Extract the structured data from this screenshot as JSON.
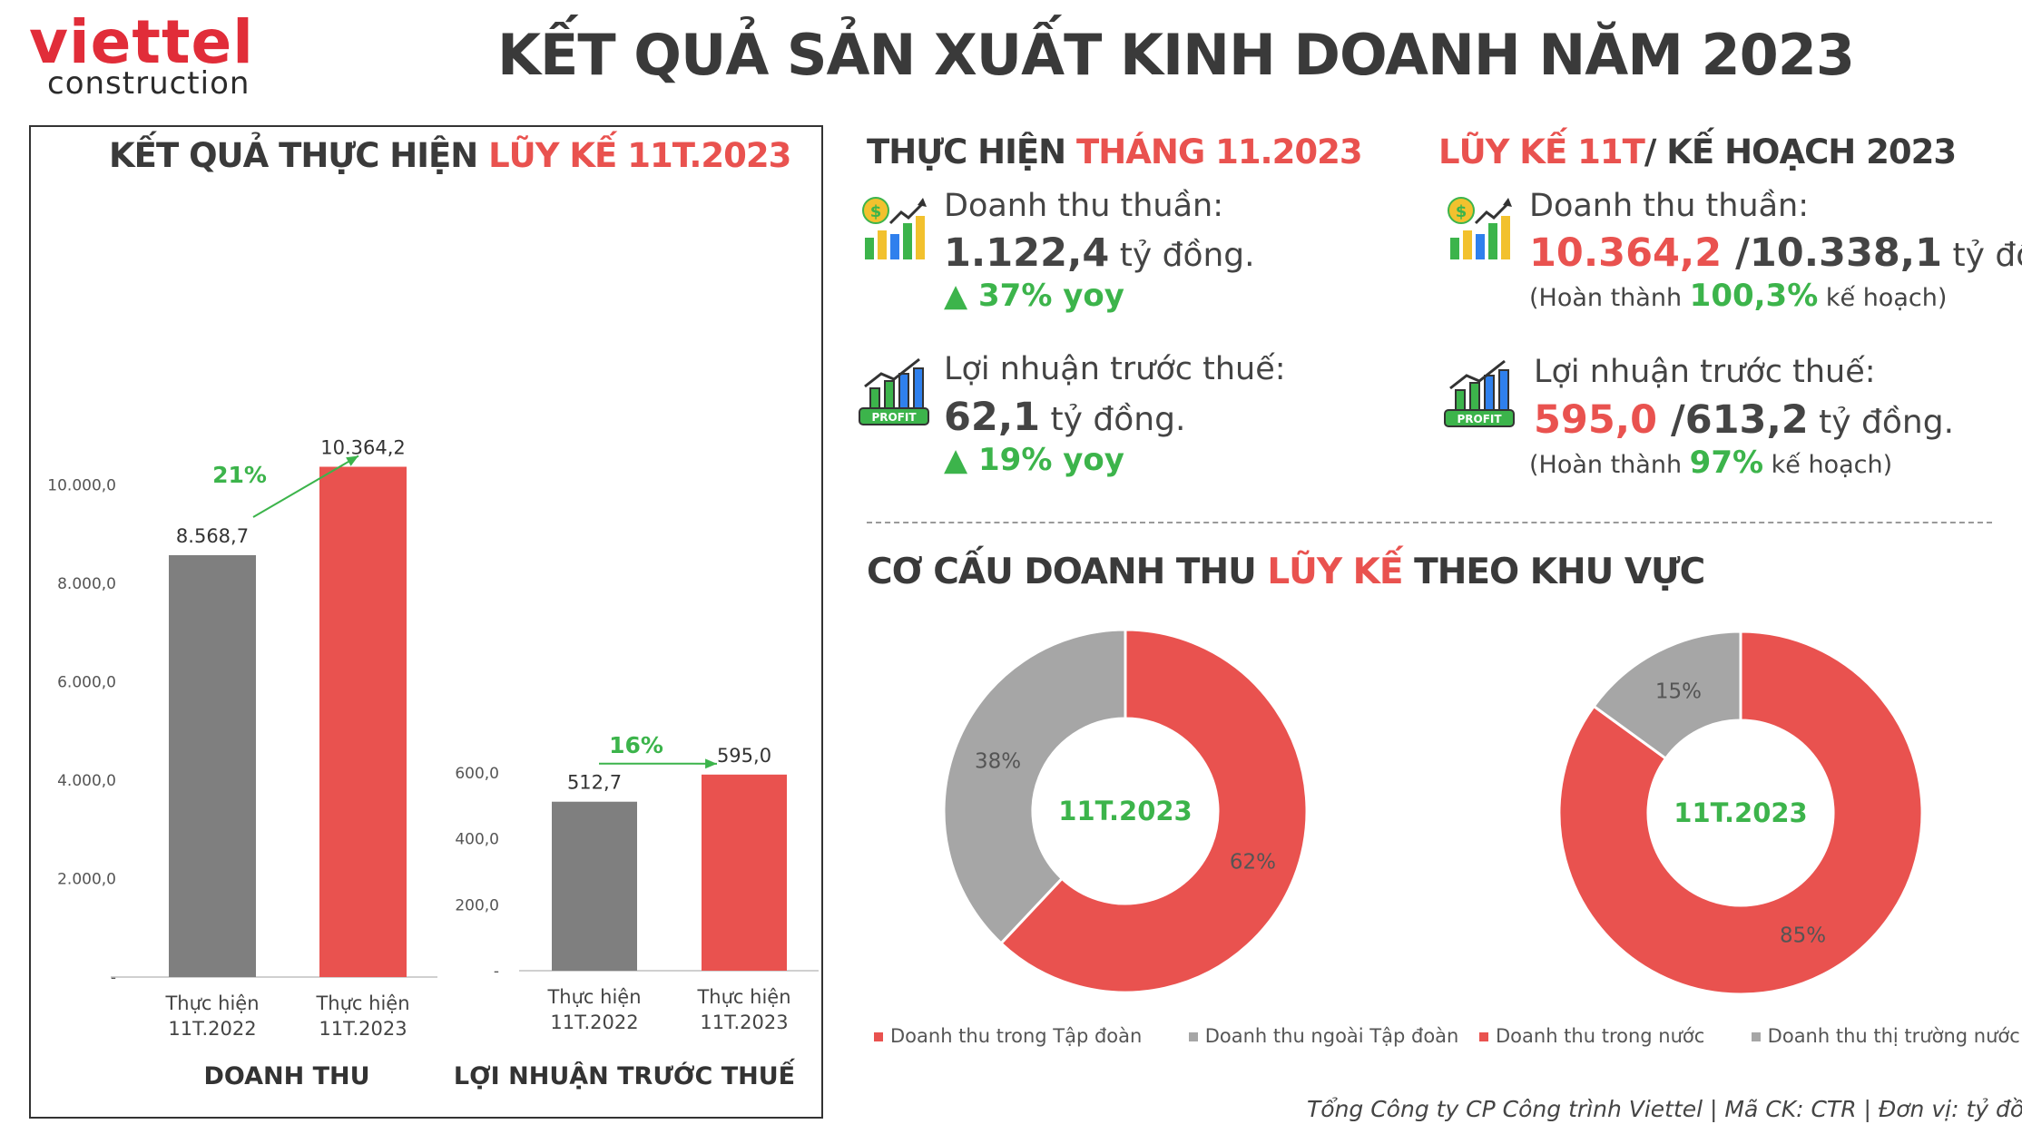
{
  "logo": {
    "brand": "viettel",
    "sub": "construction"
  },
  "header": {
    "title": "KẾT QUẢ SẢN XUẤT KINH DOANH NĂM 2023"
  },
  "left_panel": {
    "title_part1": "KẾT QUẢ THỰC HIỆN ",
    "title_part2": "LŨY KẾ 11T.2023"
  },
  "monthly": {
    "title_part1": "THỰC HIỆN ",
    "title_part2": "THÁNG 11.2023",
    "revenue_label": "Doanh thu thuần:",
    "revenue_value": "1.122,4",
    "revenue_unit": " tỷ đồng.",
    "revenue_yoy": "37% yoy",
    "profit_label": "Lợi nhuận trước thuế:",
    "profit_value": "62,1",
    "profit_unit": " tỷ đồng.",
    "profit_yoy": "19% yoy",
    "profit_icon_text": "PROFIT"
  },
  "plan": {
    "title_part1": "LŨY KẾ 11T",
    "title_part2": "/ KẾ HOẠCH 2023",
    "revenue_label": "Doanh thu thuần:",
    "revenue_actual": "10.364,2",
    "revenue_plan": " /10.338,1",
    "revenue_unit": " tỷ đồng.",
    "revenue_note_pre": "(Hoàn thành ",
    "revenue_note_pct": "100,3%",
    "revenue_note_post": " kế hoạch)",
    "profit_label": "Lợi nhuận trước thuế:",
    "profit_actual": "595,0",
    "profit_plan": " /613,2",
    "profit_unit": " tỷ đồng.",
    "profit_note_pre": "(Hoàn thành ",
    "profit_note_pct": "97%",
    "profit_note_post": " kế hoạch)",
    "profit_icon_text": "PROFIT"
  },
  "structure": {
    "title_part1": "CƠ CẤU DOANH THU ",
    "title_part2": "LŨY KẾ",
    "title_part3": " THEO KHU VỰC"
  },
  "colors": {
    "red": "#e9524f",
    "gray": "#7f7f7f",
    "lightgray": "#a6a6a6",
    "green": "#3cb44b"
  },
  "chart_data": [
    {
      "type": "bar",
      "xlabel": "DOANH THU",
      "categories": [
        "Thực hiện\n11T.2022",
        "Thực hiện\n11T.2023"
      ],
      "values": [
        8568.7,
        10364.2
      ],
      "value_labels": [
        "8.568,7",
        "10.364,2"
      ],
      "ylim": [
        0,
        11000
      ],
      "yticks": [
        0,
        2000,
        4000,
        6000,
        8000,
        10000
      ],
      "ytick_labels": [
        "-",
        "2.000,0",
        "4.000,0",
        "6.000,0",
        "8.000,0",
        "10.000,0"
      ],
      "growth": "21%",
      "bar_colors": [
        "#7f7f7f",
        "#e9524f"
      ]
    },
    {
      "type": "bar",
      "xlabel": "LỢI NHUẬN TRƯỚC THUẾ",
      "categories": [
        "Thực hiện\n11T.2022",
        "Thực hiện\n11T.2023"
      ],
      "values": [
        512.7,
        595.0
      ],
      "value_labels": [
        "512,7",
        "595,0"
      ],
      "ylim": [
        0,
        600
      ],
      "yticks": [
        0,
        200,
        400,
        600
      ],
      "ytick_labels": [
        "-",
        "200,0",
        "400,0",
        "600,0"
      ],
      "growth": "16%",
      "bar_colors": [
        "#7f7f7f",
        "#e9524f"
      ]
    },
    {
      "type": "pie",
      "center_label": "11T.2023",
      "labels": [
        "Doanh thu trong Tập đoàn",
        "Doanh thu ngoài Tập đoàn"
      ],
      "values": [
        62,
        38
      ],
      "value_labels": [
        "62%",
        "38%"
      ],
      "colors": [
        "#e9524f",
        "#a6a6a6"
      ]
    },
    {
      "type": "pie",
      "center_label": "11T.2023",
      "labels": [
        "Doanh thu trong nước",
        "Doanh thu thị trường nước ngoài"
      ],
      "values": [
        85,
        15
      ],
      "value_labels": [
        "85%",
        "15%"
      ],
      "colors": [
        "#e9524f",
        "#a6a6a6"
      ]
    }
  ],
  "footer": {
    "text": "Tổng Công ty CP Công trình Viettel   |   Mã CK: CTR  |  Đơn vị: tỷ đồng."
  }
}
